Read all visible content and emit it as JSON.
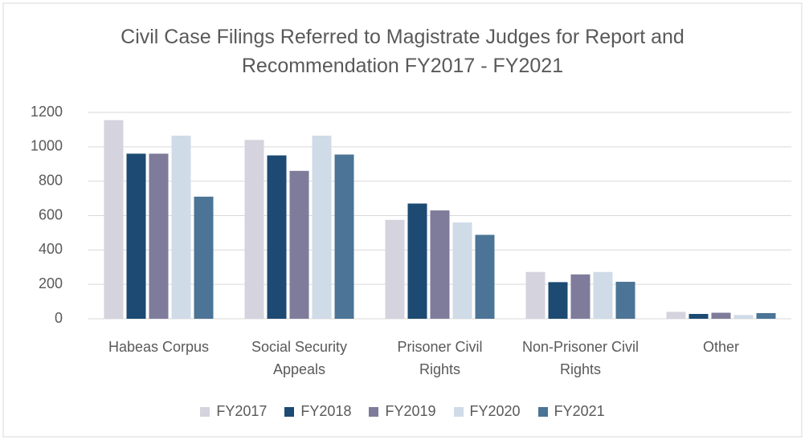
{
  "chart_data": {
    "type": "bar",
    "title": "Civil Case Filings Referred to Magistrate Judges for Report and Recommendation FY2017 - FY2021",
    "categories": [
      "Habeas Corpus",
      "Social Security Appeals",
      "Prisoner Civil Rights",
      "Non-Prisoner Civil Rights",
      "Other"
    ],
    "series": [
      {
        "name": "FY2017",
        "color": "#d4d3de",
        "values": [
          1155,
          1040,
          575,
          272,
          40
        ]
      },
      {
        "name": "FY2018",
        "color": "#1c4a72",
        "values": [
          960,
          950,
          670,
          213,
          28
        ]
      },
      {
        "name": "FY2019",
        "color": "#7f7b9b",
        "values": [
          960,
          860,
          630,
          258,
          35
        ]
      },
      {
        "name": "FY2020",
        "color": "#d0dbe8",
        "values": [
          1065,
          1065,
          560,
          272,
          22
        ]
      },
      {
        "name": "FY2021",
        "color": "#4b7496",
        "values": [
          710,
          955,
          488,
          215,
          33
        ]
      }
    ],
    "ylim": [
      0,
      1200
    ],
    "yticks": [
      0,
      200,
      400,
      600,
      800,
      1000,
      1200
    ],
    "grid": true,
    "legend": "bottom"
  }
}
